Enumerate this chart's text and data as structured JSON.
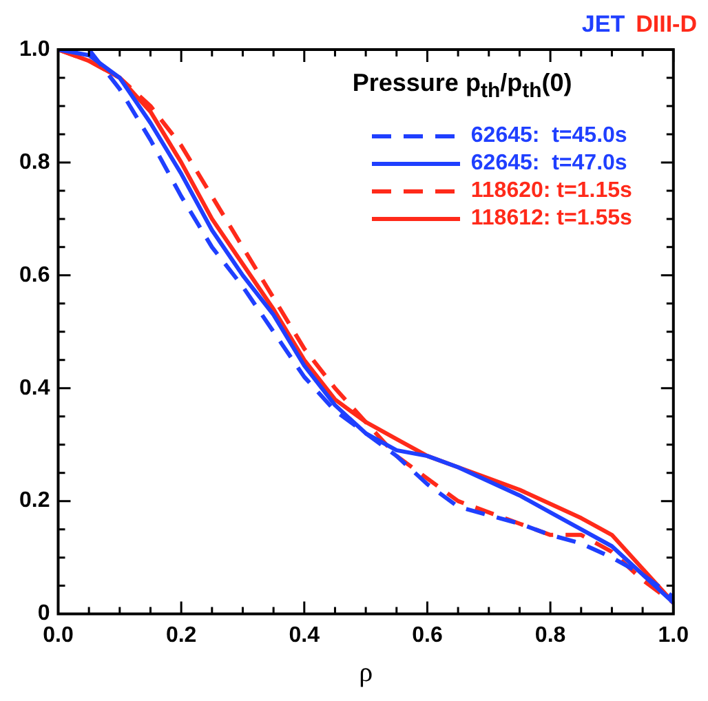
{
  "chart_data": {
    "type": "line",
    "xlabel": "ρ",
    "legend_title": "Pressure p$_{th}$/p$_{th}$(0)",
    "legend": "top right",
    "annotations": [
      "JET",
      "DIII-D"
    ],
    "x": [
      0,
      0.05,
      0.1,
      0.15,
      0.2,
      0.25,
      0.3,
      0.35,
      0.4,
      0.45,
      0.5,
      0.55,
      0.6,
      0.65,
      0.7,
      0.75,
      0.8,
      0.85,
      0.9,
      0.95,
      1.0
    ],
    "series": [
      {
        "name": "62645:  t=45.0s",
        "color": "#1f3fff",
        "line_style": "dashed",
        "values": [
          1.0,
          1.0,
          0.93,
          0.84,
          0.74,
          0.65,
          0.58,
          0.5,
          0.42,
          0.36,
          0.32,
          0.28,
          0.23,
          0.19,
          0.175,
          0.16,
          0.14,
          0.125,
          0.1,
          0.07,
          0.03
        ]
      },
      {
        "name": "62645:  t=47.0s",
        "color": "#1f3fff",
        "line_style": "solid",
        "values": [
          1.0,
          0.99,
          0.95,
          0.87,
          0.78,
          0.68,
          0.6,
          0.53,
          0.44,
          0.37,
          0.32,
          0.29,
          0.28,
          0.26,
          0.235,
          0.21,
          0.18,
          0.15,
          0.12,
          0.07,
          0.02
        ]
      },
      {
        "name": "118620: t=1.15s",
        "color": "#ff2a1a",
        "line_style": "dashed",
        "values": [
          1.0,
          0.98,
          0.95,
          0.9,
          0.83,
          0.74,
          0.65,
          0.56,
          0.47,
          0.4,
          0.34,
          0.28,
          0.24,
          0.2,
          0.18,
          0.16,
          0.14,
          0.14,
          0.11,
          0.06,
          0.02
        ]
      },
      {
        "name": "118612: t=1.55s",
        "color": "#ff2a1a",
        "line_style": "solid",
        "values": [
          1.0,
          0.98,
          0.95,
          0.89,
          0.8,
          0.7,
          0.62,
          0.54,
          0.45,
          0.38,
          0.34,
          0.31,
          0.28,
          0.26,
          0.24,
          0.22,
          0.195,
          0.17,
          0.14,
          0.08,
          0.02
        ]
      }
    ],
    "xlim": [
      0,
      1.0
    ],
    "ylim": [
      0,
      1.0
    ],
    "xticks": [
      {
        "value": 0,
        "label": "0.0"
      },
      {
        "value": 0.05,
        "label": null
      },
      {
        "value": 0.1,
        "label": null
      },
      {
        "value": 0.15,
        "label": null
      },
      0.2,
      {
        "value": 0.25,
        "label": null
      },
      {
        "value": 0.3,
        "label": null
      },
      {
        "value": 0.35,
        "label": null
      },
      0.4,
      {
        "value": 0.45,
        "label": null
      },
      {
        "value": 0.5,
        "label": null
      },
      {
        "value": 0.55,
        "label": null
      },
      0.6,
      {
        "value": 0.65,
        "label": null
      },
      {
        "value": 0.7,
        "label": null
      },
      {
        "value": 0.75,
        "label": null
      },
      0.8,
      {
        "value": 0.85,
        "label": null
      },
      {
        "value": 0.9,
        "label": null
      },
      {
        "value": 0.95,
        "label": null
      },
      {
        "value": 1.0,
        "label": "1.0"
      }
    ],
    "yticks": [
      0,
      {
        "value": 0.05,
        "label": null
      },
      {
        "value": 0.1,
        "label": null
      },
      {
        "value": 0.15,
        "label": null
      },
      0.2,
      {
        "value": 0.25,
        "label": null
      },
      {
        "value": 0.3,
        "label": null
      },
      {
        "value": 0.35,
        "label": null
      },
      0.4,
      {
        "value": 0.45,
        "label": null
      },
      {
        "value": 0.5,
        "label": null
      },
      {
        "value": 0.55,
        "label": null
      },
      0.6,
      {
        "value": 0.65,
        "label": null
      },
      {
        "value": 0.7,
        "label": null
      },
      {
        "value": 0.75,
        "label": null
      },
      0.8,
      {
        "value": 0.85,
        "label": null
      },
      {
        "value": 0.9,
        "label": null
      },
      {
        "value": 0.95,
        "label": null
      },
      {
        "value": 1.0,
        "label": "1.0"
      }
    ],
    "grid": false,
    "marker": "none"
  }
}
